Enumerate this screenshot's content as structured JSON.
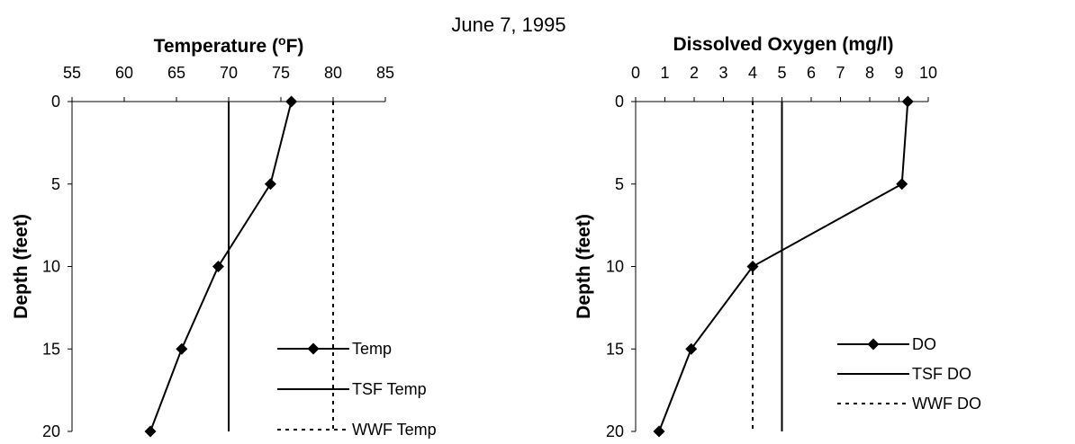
{
  "page_title": "June 7, 1995",
  "chart_data": [
    {
      "type": "line",
      "title": "Temperature (°F)",
      "title_parts": {
        "main": "Temperature (",
        "sup": "o",
        "end": "F)"
      },
      "ylabel": "Depth (feet)",
      "xlim": [
        55,
        85
      ],
      "x_ticks": [
        55,
        60,
        65,
        70,
        75,
        80,
        85
      ],
      "ylim": [
        0,
        20
      ],
      "y_ticks": [
        0,
        5,
        10,
        15,
        20
      ],
      "y_inverted": true,
      "x_axis_position": "top",
      "grid": false,
      "legend_position": "bottom-right",
      "series": [
        {
          "name": "Temp",
          "style": "line-diamond",
          "color": "#000000",
          "points": [
            {
              "x": 76,
              "y": 0
            },
            {
              "x": 74,
              "y": 5
            },
            {
              "x": 69,
              "y": 10
            },
            {
              "x": 65.5,
              "y": 15
            },
            {
              "x": 62.5,
              "y": 20
            }
          ]
        },
        {
          "name": "TSF Temp",
          "style": "solid",
          "color": "#000000",
          "points": [
            {
              "x": 70,
              "y": 0
            },
            {
              "x": 70,
              "y": 20
            }
          ]
        },
        {
          "name": "WWF Temp",
          "style": "dashed",
          "color": "#000000",
          "points": [
            {
              "x": 80,
              "y": 0
            },
            {
              "x": 80,
              "y": 20
            }
          ]
        }
      ]
    },
    {
      "type": "line",
      "title": "Dissolved Oxygen (mg/l)",
      "ylabel": "Depth (feet)",
      "xlim": [
        0,
        10
      ],
      "x_ticks": [
        0,
        1,
        2,
        3,
        4,
        5,
        6,
        7,
        8,
        9,
        10
      ],
      "ylim": [
        0,
        20
      ],
      "y_ticks": [
        0,
        5,
        10,
        15,
        20
      ],
      "y_inverted": true,
      "x_axis_position": "top",
      "grid": false,
      "legend_position": "bottom-right",
      "series": [
        {
          "name": "DO",
          "style": "line-diamond",
          "color": "#000000",
          "points": [
            {
              "x": 9.3,
              "y": 0
            },
            {
              "x": 9.1,
              "y": 5
            },
            {
              "x": 4,
              "y": 10
            },
            {
              "x": 1.9,
              "y": 15
            },
            {
              "x": 0.8,
              "y": 20
            }
          ]
        },
        {
          "name": "TSF DO",
          "style": "solid",
          "color": "#000000",
          "points": [
            {
              "x": 5,
              "y": 0
            },
            {
              "x": 5,
              "y": 20
            }
          ]
        },
        {
          "name": "WWF DO",
          "style": "dashed",
          "color": "#000000",
          "points": [
            {
              "x": 4,
              "y": 0
            },
            {
              "x": 4,
              "y": 20
            }
          ]
        }
      ]
    }
  ]
}
